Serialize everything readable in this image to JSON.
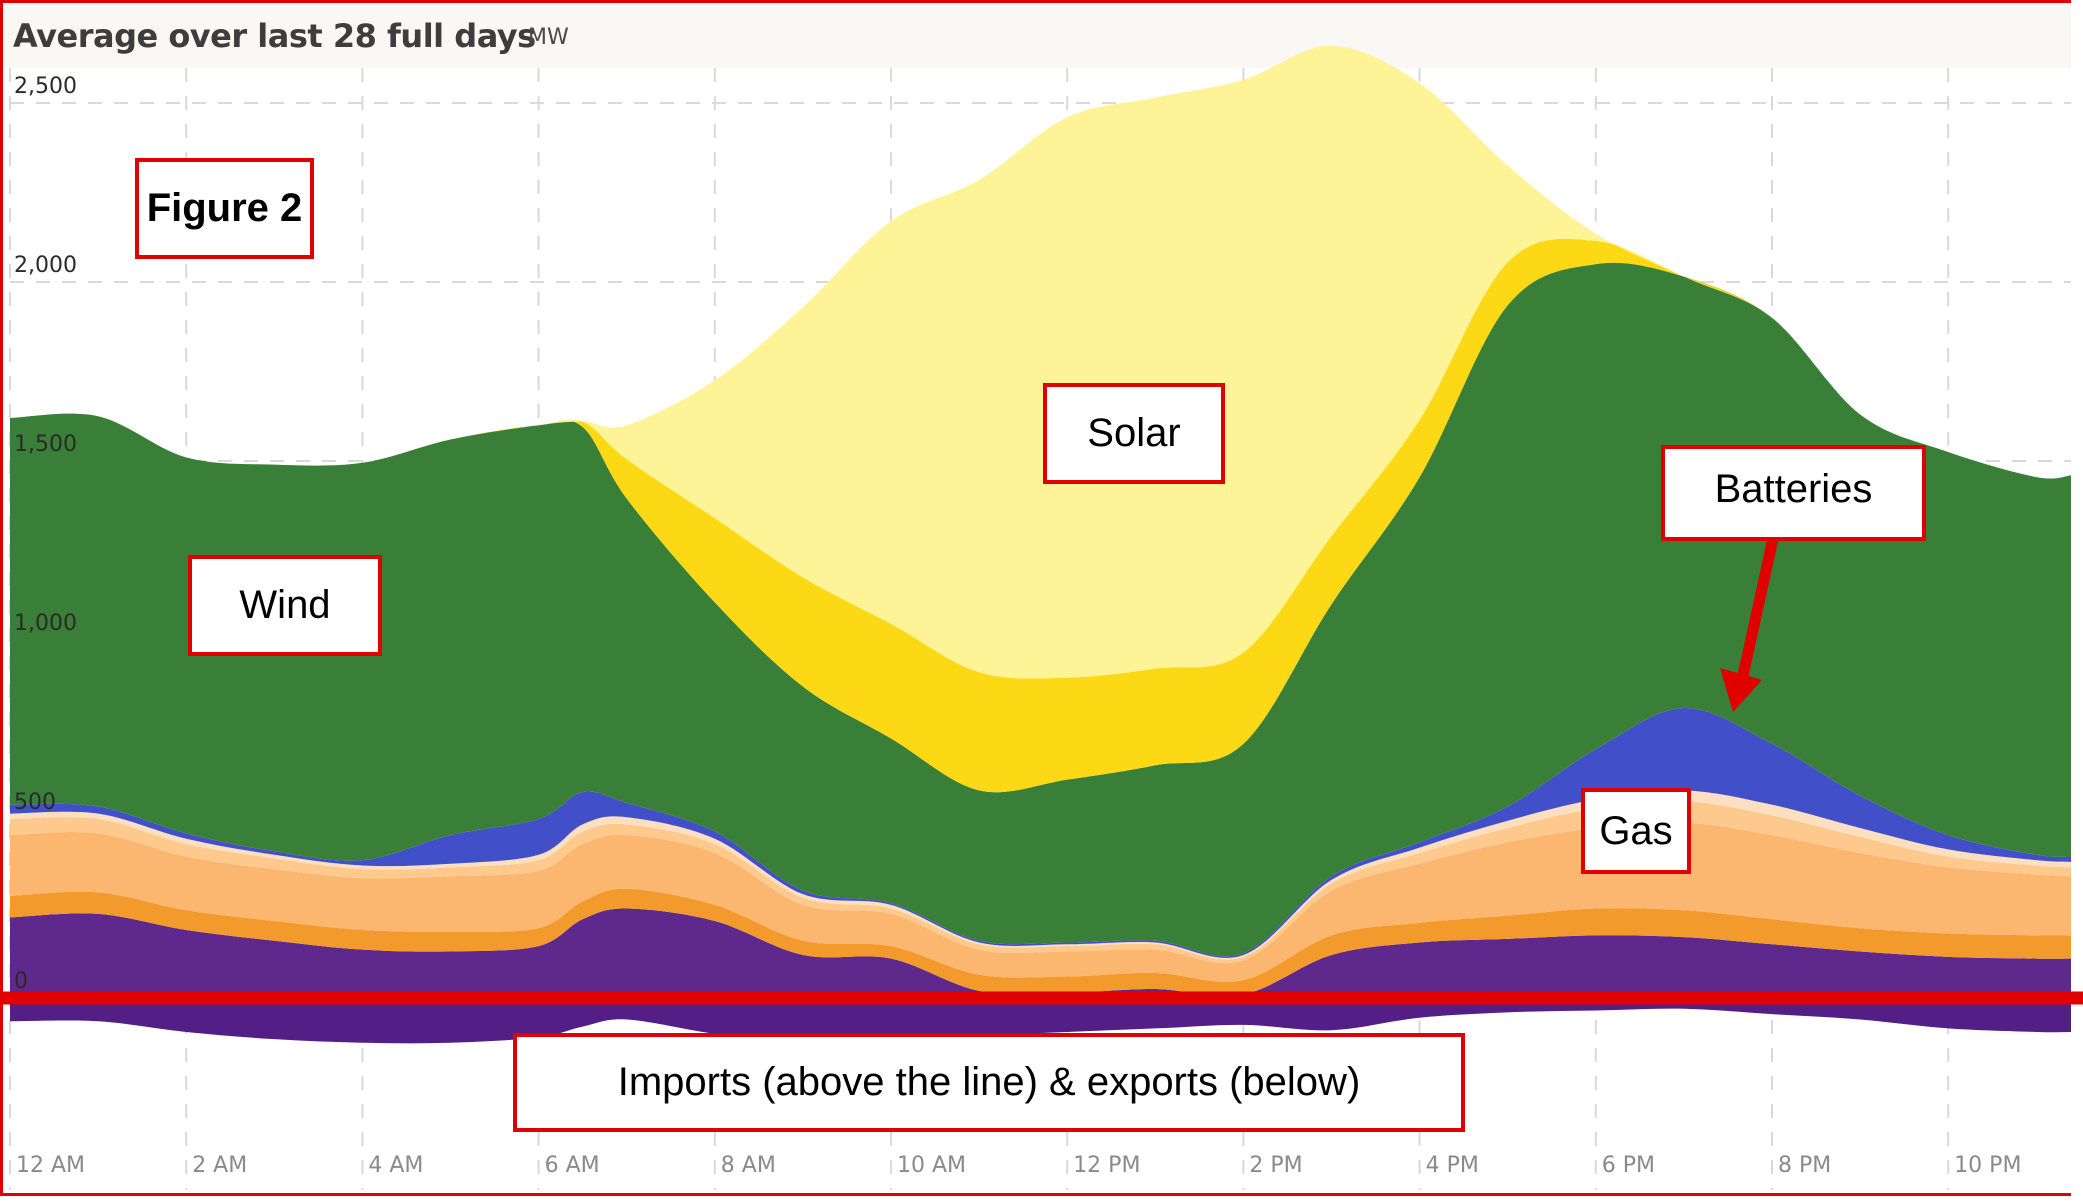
{
  "header": {
    "title": "Average over last 28 full days",
    "unit": "MW"
  },
  "annotations": {
    "figure": "Figure 2",
    "solar": "Solar",
    "wind": "Wind",
    "batteries": "Batteries",
    "gas": "Gas",
    "imports_exports": "Imports (above the line) & exports (below)"
  },
  "colors": {
    "solar_rooftop": "#fef497",
    "solar_utility": "#fdd814",
    "wind": "#3a7f38",
    "batteries": "#4150c9",
    "gas_peak": "#fbdfc0",
    "gas_ocgt": "#fdc98c",
    "gas_ccgt": "#fbb66f",
    "gas_steam": "#f39a2c",
    "imports": "#5e288c",
    "exports": "#531f87",
    "annotation_border": "#e00000",
    "grid": "#d9d9d9"
  },
  "chart_data": {
    "type": "area",
    "stacked": true,
    "title": "Average over last 28 full days",
    "ylabel": "MW",
    "xlabel": "",
    "ylim": [
      -150,
      2650
    ],
    "xlim": [
      0,
      23.6
    ],
    "y_ticks": [
      0,
      500,
      1000,
      1500,
      2000,
      2500
    ],
    "y_tick_labels": [
      "0",
      "500",
      "1,000",
      "1,500",
      "2,000",
      "2,500"
    ],
    "x_ticks": [
      0,
      2,
      4,
      6,
      8,
      10,
      12,
      14,
      16,
      18,
      20,
      22
    ],
    "x_tick_labels": [
      "12 AM",
      "2 AM",
      "4 AM",
      "6 AM",
      "8 AM",
      "10 AM",
      "12 PM",
      "2 PM",
      "4 PM",
      "6 PM",
      "8 PM",
      "10 PM"
    ],
    "grid": true,
    "legend": "none",
    "x": [
      0,
      1,
      2,
      3,
      4,
      5,
      6,
      6.5,
      7,
      8,
      9,
      10,
      11,
      12,
      13,
      14,
      15,
      16,
      17,
      18,
      19,
      20,
      21,
      22,
      23,
      23.6
    ],
    "series": [
      {
        "name": "Imports",
        "color_key": "imports",
        "values": [
          225,
          235,
          190,
          160,
          135,
          130,
          145,
          220,
          250,
          215,
          120,
          110,
          20,
          15,
          25,
          10,
          120,
          155,
          165,
          175,
          170,
          150,
          130,
          115,
          110,
          110
        ]
      },
      {
        "name": "Gas (steam)",
        "color_key": "gas_steam",
        "values": [
          60,
          60,
          55,
          55,
          55,
          55,
          50,
          50,
          55,
          45,
          40,
          35,
          45,
          45,
          45,
          40,
          55,
          55,
          65,
          75,
          75,
          70,
          65,
          65,
          65,
          65
        ]
      },
      {
        "name": "Gas (CCGT)",
        "color_key": "gas_ccgt",
        "values": [
          170,
          165,
          150,
          145,
          145,
          155,
          160,
          160,
          150,
          145,
          100,
          90,
          70,
          70,
          65,
          55,
          125,
          165,
          205,
          225,
          245,
          235,
          210,
          185,
          170,
          165
        ]
      },
      {
        "name": "Gas (OCGT)",
        "color_key": "gas_ocgt",
        "values": [
          45,
          40,
          35,
          30,
          25,
          25,
          30,
          35,
          30,
          25,
          20,
          15,
          15,
          15,
          15,
          10,
          20,
          30,
          40,
          55,
          60,
          55,
          45,
          30,
          25,
          25
        ]
      },
      {
        "name": "Gas (peak)",
        "color_key": "gas_peak",
        "values": [
          15,
          15,
          15,
          10,
          10,
          10,
          15,
          20,
          20,
          15,
          10,
          10,
          5,
          5,
          5,
          5,
          10,
          15,
          20,
          25,
          30,
          30,
          25,
          20,
          15,
          15
        ]
      },
      {
        "name": "Batteries",
        "color_key": "batteries",
        "values": [
          25,
          20,
          15,
          10,
          15,
          80,
          100,
          90,
          40,
          20,
          10,
          5,
          5,
          5,
          5,
          5,
          10,
          15,
          40,
          140,
          230,
          170,
          90,
          40,
          15,
          15
        ]
      },
      {
        "name": "Wind",
        "color_key": "wind",
        "values": [
          1080,
          1090,
          1050,
          1080,
          1110,
          1105,
          1100,
          1020,
          850,
          640,
          570,
          460,
          420,
          455,
          490,
          585,
          760,
          1020,
          1400,
          1355,
          1205,
          1190,
          1065,
          1070,
          1055,
          1065
        ]
      },
      {
        "name": "Solar (utility)",
        "color_key": "solar_utility",
        "values": [
          0,
          0,
          0,
          0,
          0,
          0,
          0,
          15,
          110,
          235,
          305,
          320,
          330,
          285,
          270,
          255,
          190,
          160,
          120,
          65,
          0,
          0,
          0,
          0,
          0,
          0
        ]
      },
      {
        "name": "Solar (rooftop)",
        "color_key": "solar_rooftop",
        "values": [
          0,
          0,
          0,
          0,
          0,
          0,
          0,
          0,
          95,
          385,
          755,
          1125,
          1375,
          1565,
          1595,
          1600,
          1370,
          940,
          270,
          20,
          0,
          0,
          0,
          0,
          0,
          0
        ]
      },
      {
        "name": "Exports",
        "color_key": "exports",
        "values": [
          -65,
          -65,
          -95,
          -115,
          -125,
          -125,
          -110,
          -80,
          -60,
          -100,
          -130,
          -120,
          -105,
          -95,
          -85,
          -75,
          -90,
          -55,
          -40,
          -35,
          -30,
          -45,
          -60,
          -85,
          -95,
          -95
        ]
      }
    ]
  }
}
